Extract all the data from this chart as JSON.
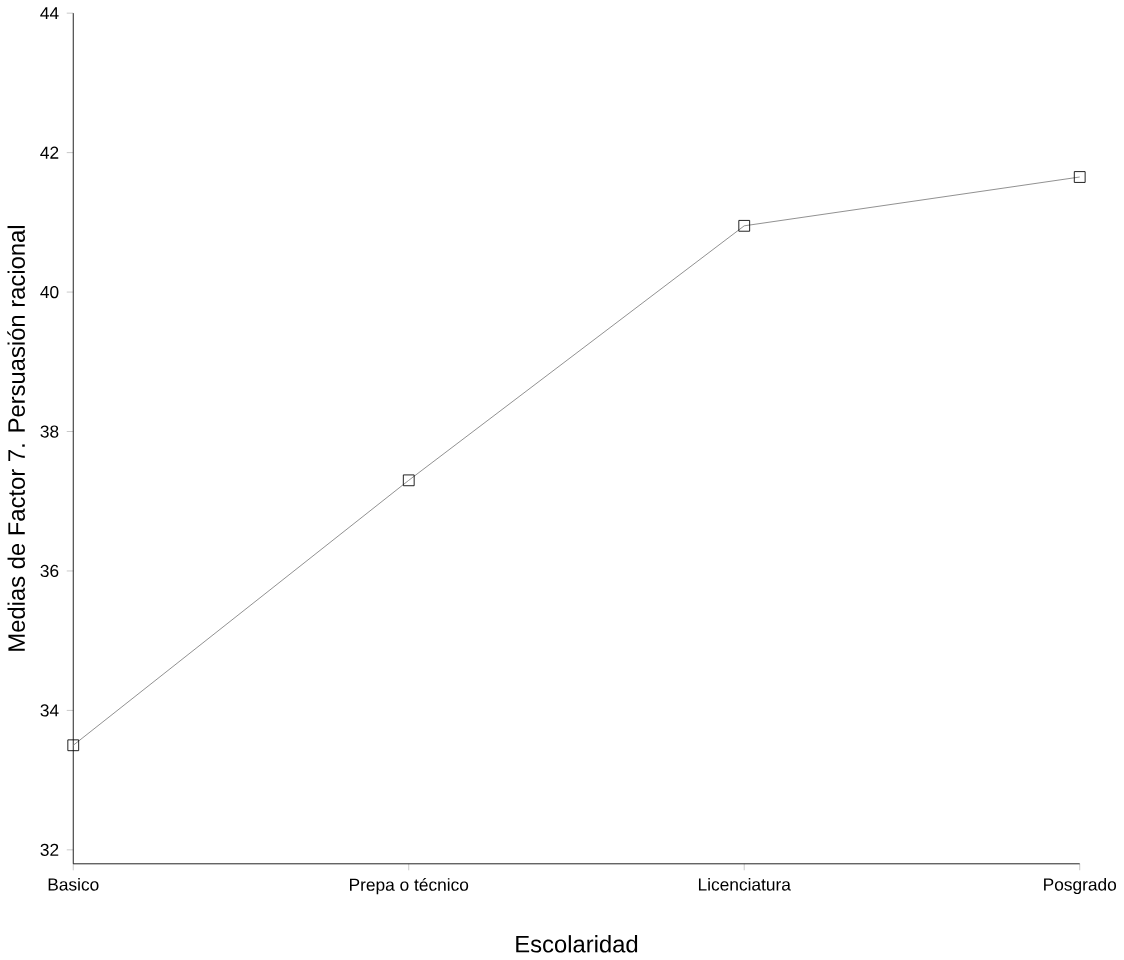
{
  "chart_data": {
    "type": "line",
    "xlabel": "Escolaridad",
    "ylabel": "Medias de Factor 7. Persuasión racional",
    "categories": [
      "Basico",
      "Prepa o técnico",
      "Licenciatura",
      "Posgrado"
    ],
    "values": [
      33.5,
      37.3,
      40.95,
      41.65
    ],
    "color": "#808080",
    "marker": "square",
    "line_style": "solid",
    "ylim": [
      31.8,
      44
    ],
    "yticks": [
      32,
      34,
      36,
      38,
      40,
      42,
      44
    ]
  }
}
